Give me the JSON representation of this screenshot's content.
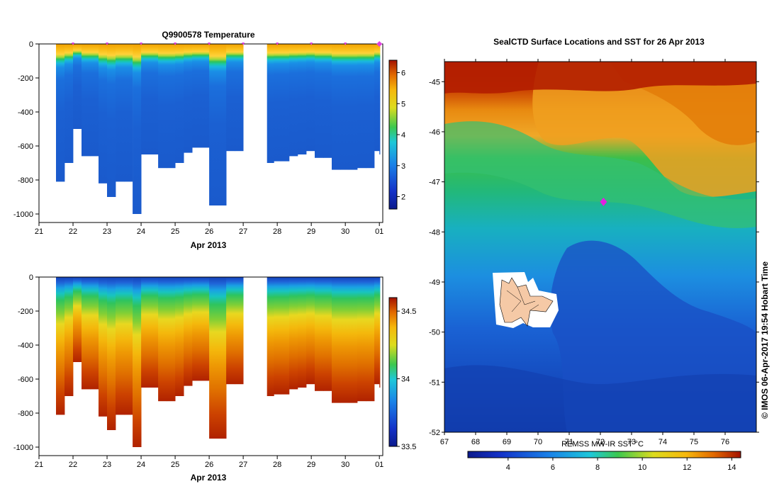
{
  "chart_data": [
    {
      "type": "heatmap",
      "title": "Q9900578  Temperature",
      "xlabel": "Apr 2013",
      "ylabel": "",
      "x_ticks": [
        "21",
        "22",
        "23",
        "24",
        "25",
        "26",
        "27",
        "28",
        "29",
        "30",
        "01"
      ],
      "y_ticks": [
        "0",
        "-200",
        "-400",
        "-600",
        "-800",
        "-1000"
      ],
      "xlim": [
        21,
        31.1
      ],
      "ylim": [
        -1050,
        0
      ],
      "colorbar_ticks": [
        "2",
        "3",
        "4",
        "5",
        "6"
      ],
      "colorbar_range": [
        1.6,
        6.4
      ],
      "surface_markers_day": [
        22,
        23,
        24,
        25,
        26,
        27,
        28,
        29,
        30,
        31
      ],
      "profiles": [
        {
          "day": 21.5,
          "max_depth": 810
        },
        {
          "day": 21.75,
          "max_depth": 700
        },
        {
          "day": 22.0,
          "max_depth": 500
        },
        {
          "day": 22.25,
          "max_depth": 660
        },
        {
          "day": 22.5,
          "max_depth": 660
        },
        {
          "day": 22.75,
          "max_depth": 820
        },
        {
          "day": 23.0,
          "max_depth": 900
        },
        {
          "day": 23.25,
          "max_depth": 810
        },
        {
          "day": 23.5,
          "max_depth": 810
        },
        {
          "day": 23.75,
          "max_depth": 1000
        },
        {
          "day": 24.0,
          "max_depth": 650
        },
        {
          "day": 24.25,
          "max_depth": 650
        },
        {
          "day": 24.5,
          "max_depth": 730
        },
        {
          "day": 24.75,
          "max_depth": 730
        },
        {
          "day": 25.0,
          "max_depth": 700
        },
        {
          "day": 25.25,
          "max_depth": 640
        },
        {
          "day": 25.5,
          "max_depth": 610
        },
        {
          "day": 25.75,
          "max_depth": 610
        },
        {
          "day": 26.0,
          "max_depth": 950
        },
        {
          "day": 26.25,
          "max_depth": 950
        },
        {
          "day": 26.5,
          "max_depth": 630
        },
        {
          "day": 26.75,
          "max_depth": 630
        },
        {
          "day": 27.7,
          "max_depth": 700
        },
        {
          "day": 27.9,
          "max_depth": 690
        },
        {
          "day": 28.1,
          "max_depth": 690
        },
        {
          "day": 28.35,
          "max_depth": 660
        },
        {
          "day": 28.6,
          "max_depth": 650
        },
        {
          "day": 28.85,
          "max_depth": 630
        },
        {
          "day": 29.1,
          "max_depth": 670
        },
        {
          "day": 29.35,
          "max_depth": 670
        },
        {
          "day": 29.6,
          "max_depth": 740
        },
        {
          "day": 29.85,
          "max_depth": 740
        },
        {
          "day": 30.1,
          "max_depth": 740
        },
        {
          "day": 30.35,
          "max_depth": 730
        },
        {
          "day": 30.6,
          "max_depth": 730
        },
        {
          "day": 30.85,
          "max_depth": 630
        },
        {
          "day": 31.0,
          "max_depth": 650
        }
      ]
    },
    {
      "type": "heatmap",
      "title": "",
      "xlabel": "Apr 2013",
      "ylabel": "",
      "x_ticks": [
        "21",
        "22",
        "23",
        "24",
        "25",
        "26",
        "27",
        "28",
        "29",
        "30",
        "01"
      ],
      "y_ticks": [
        "0",
        "-200",
        "-400",
        "-600",
        "-800",
        "-1000"
      ],
      "xlim": [
        21,
        31.1
      ],
      "ylim": [
        -1050,
        0
      ],
      "colorbar_ticks": [
        "33.5",
        "34",
        "34.5"
      ],
      "colorbar_range": [
        33.5,
        34.6
      ]
    },
    {
      "type": "heatmap",
      "title": "SealCTD Surface Locations and SST for 26 Apr 2013",
      "xlabel": "",
      "ylabel": "",
      "x_ticks": [
        "67",
        "68",
        "69",
        "70",
        "71",
        "72",
        "73",
        "74",
        "75",
        "76"
      ],
      "y_ticks": [
        "-45",
        "-46",
        "-47",
        "-48",
        "-49",
        "-50",
        "-51",
        "-52"
      ],
      "xlim": [
        67,
        77
      ],
      "ylim": [
        -52,
        -44.6
      ],
      "colorbar_label": "REMSS MW-IR SST °C",
      "colorbar_ticks": [
        "4",
        "6",
        "8",
        "10",
        "12",
        "14"
      ],
      "colorbar_range": [
        2.2,
        14.4
      ],
      "seal_location": {
        "lon": 72.1,
        "lat": -47.4
      }
    }
  ],
  "credit": "© IMOS 06-Apr-2017 19:54 Hobart Time"
}
